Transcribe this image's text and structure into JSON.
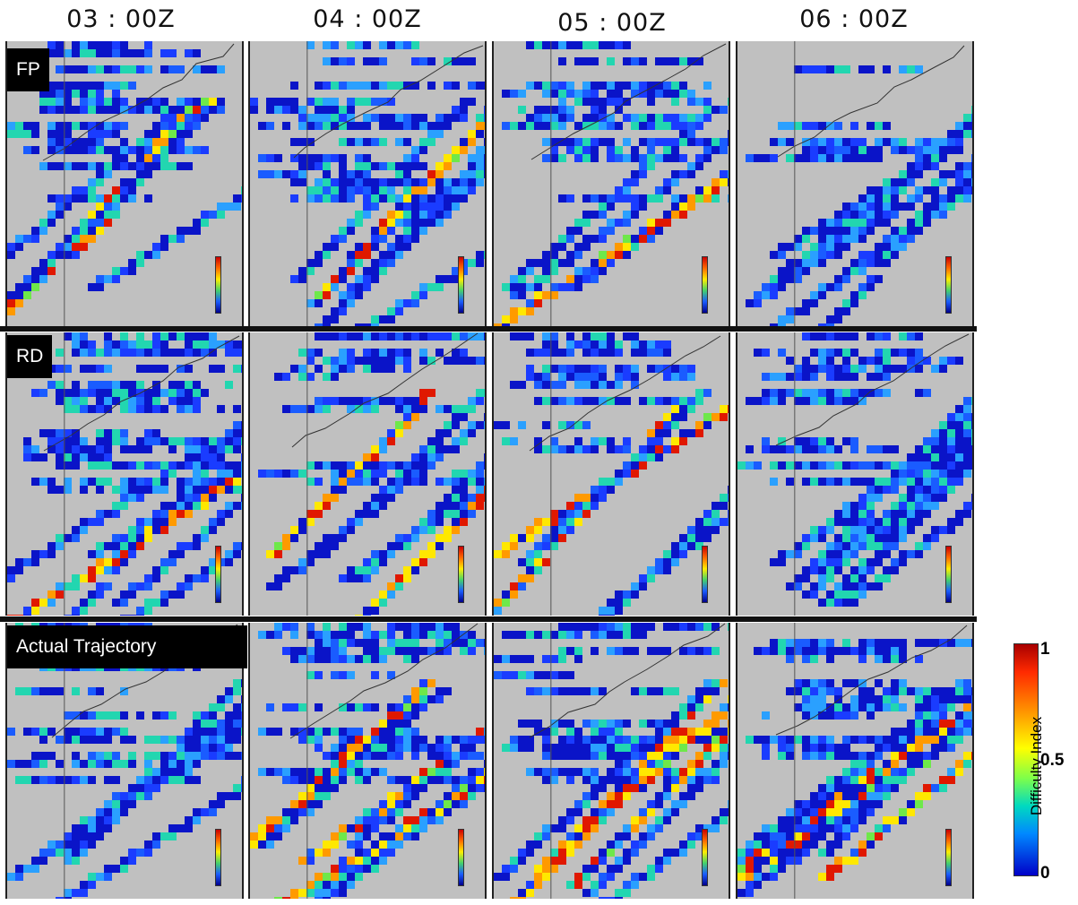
{
  "columns": [
    "03 : 00Z",
    "04 : 00Z",
    "05 : 00Z",
    "06 : 00Z"
  ],
  "rows": [
    "FP",
    "RD",
    "Actual Trajectory"
  ],
  "colorbar": {
    "title": "Difficulty Index",
    "ticks": [
      "1",
      "0.5",
      "0"
    ]
  },
  "colors": {
    "background": "#c0c0c0",
    "scale": [
      "#00008b",
      "#1a5cff",
      "#00d9c0",
      "#44d36a",
      "#ffee00",
      "#ff6a00",
      "#cc0000"
    ]
  }
}
